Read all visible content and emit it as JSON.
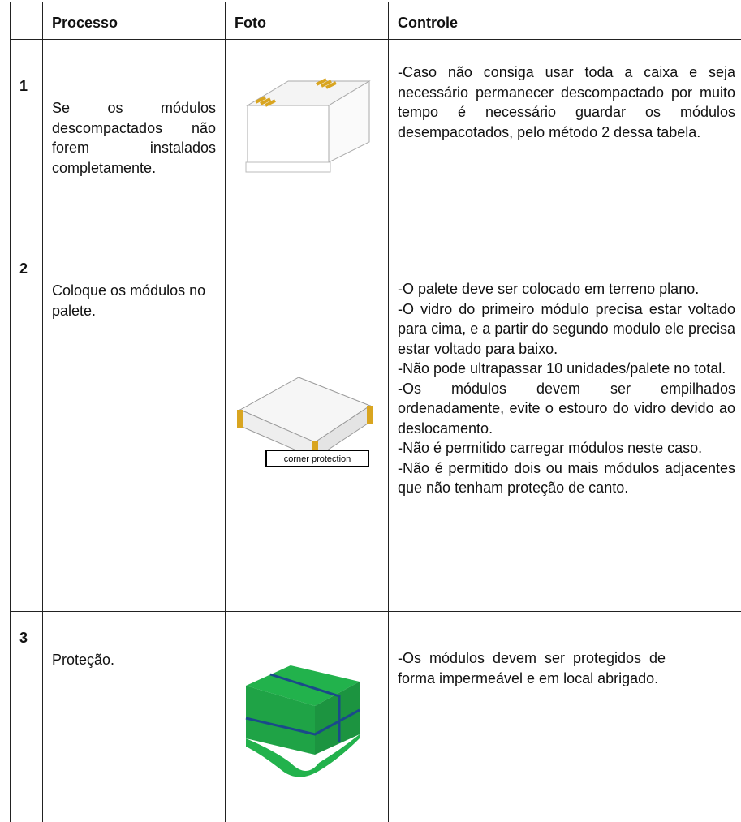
{
  "table": {
    "header": [
      "Processo",
      "Foto",
      "Controle"
    ],
    "rows": [
      {
        "number": "1",
        "process": "Se os módulos descompactados não forem instalados completamente.",
        "control": [
          "-Caso não consiga usar toda a caixa e seja necessário permanecer descompactado por muito tempo é necessário guardar os módulos desempacotados, pelo método 2 dessa tabela."
        ]
      },
      {
        "number": "2",
        "process": "Coloque os módulos no palete.",
        "photo_label": "corner protection",
        "control": [
          "-O palete deve ser colocado em terreno plano.",
          "-O vidro do primeiro módulo precisa estar voltado para cima, e a partir do segundo modulo ele precisa estar voltado para baixo.",
          "-Não pode ultrapassar 10 unidades/palete no total.",
          "-Os módulos devem ser empilhados ordenadamente, evite o estouro do vidro devido ao deslocamento.",
          "-Não é permitido carregar módulos neste caso.",
          "-Não é permitido dois ou mais módulos adjacentes que não tenham proteção de canto."
        ]
      },
      {
        "number": "3",
        "process": "Proteção.",
        "control": [
          "-Os módulos devem ser protegidos de forma impermeável e em local abrigado."
        ]
      }
    ]
  }
}
